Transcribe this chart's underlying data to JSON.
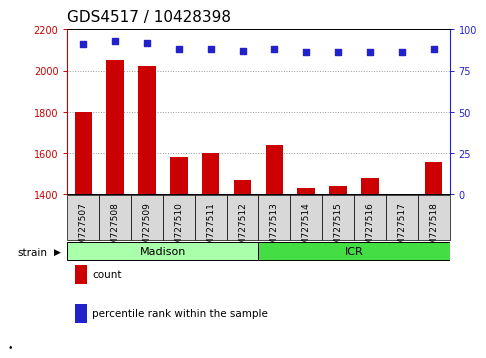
{
  "title": "GDS4517 / 10428398",
  "categories": [
    "GSM727507",
    "GSM727508",
    "GSM727509",
    "GSM727510",
    "GSM727511",
    "GSM727512",
    "GSM727513",
    "GSM727514",
    "GSM727515",
    "GSM727516",
    "GSM727517",
    "GSM727518"
  ],
  "counts": [
    1800,
    2050,
    2020,
    1580,
    1600,
    1470,
    1640,
    1430,
    1440,
    1480,
    1402,
    1555
  ],
  "percentiles": [
    91,
    93,
    92,
    88,
    88,
    87,
    88,
    86,
    86,
    86,
    86,
    88
  ],
  "ylim_left": [
    1400,
    2200
  ],
  "ylim_right": [
    0,
    100
  ],
  "yticks_left": [
    1400,
    1600,
    1800,
    2000,
    2200
  ],
  "yticks_right": [
    0,
    25,
    50,
    75,
    100
  ],
  "bar_color": "#cc0000",
  "dot_color": "#2222cc",
  "madison_group": [
    0,
    1,
    2,
    3,
    4,
    5
  ],
  "icr_group": [
    6,
    7,
    8,
    9,
    10,
    11
  ],
  "madison_color": "#aaffaa",
  "icr_color": "#44dd44",
  "axis_left_color": "#cc0000",
  "axis_right_color": "#2222cc",
  "legend_count_label": "count",
  "legend_pct_label": "percentile rank within the sample",
  "strain_label": "strain",
  "madison_label": "Madison",
  "icr_label": "ICR",
  "grid_color": "#999999",
  "title_fontsize": 11,
  "tick_fontsize": 7,
  "label_fontsize": 8,
  "tickbox_color": "#d8d8d8"
}
